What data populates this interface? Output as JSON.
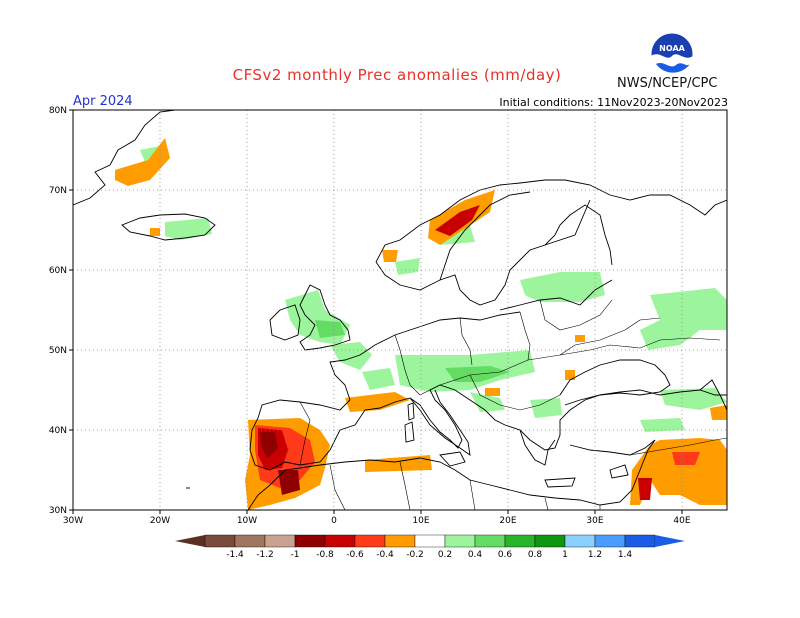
{
  "header": {
    "title": "CFSv2 monthly Prec anomalies (mm/day)",
    "month": "Apr 2024",
    "initial_conditions": "Initial conditions: 11Nov2023-20Nov2023",
    "organization": "NWS/NCEP/CPC",
    "logo_text": "NOAA"
  },
  "map": {
    "lat_labels": [
      "80N",
      "70N",
      "60N",
      "50N",
      "40N",
      "30N"
    ],
    "lon_labels": [
      "30W",
      "20W",
      "10W",
      "0",
      "10E",
      "20E",
      "30E",
      "40E"
    ],
    "lon_range": [
      -30,
      45
    ],
    "lat_range": [
      30,
      80
    ],
    "grid_style": "dotted"
  },
  "colorbar": {
    "labels": [
      "-1.4",
      "-1.2",
      "-1",
      "-0.8",
      "-0.6",
      "-0.4",
      "-0.2",
      "0.2",
      "0.4",
      "0.6",
      "0.8",
      "1",
      "1.2",
      "1.4"
    ],
    "colors": [
      "#7a4a3a",
      "#a0765f",
      "#c9a290",
      "#8f0000",
      "#c80000",
      "#ff3a1a",
      "#ff9c00",
      "#ffffff",
      "#9cf59c",
      "#64dc64",
      "#28b428",
      "#109610",
      "#8cd0ff",
      "#4a9cff",
      "#1a5ce6"
    ]
  }
}
